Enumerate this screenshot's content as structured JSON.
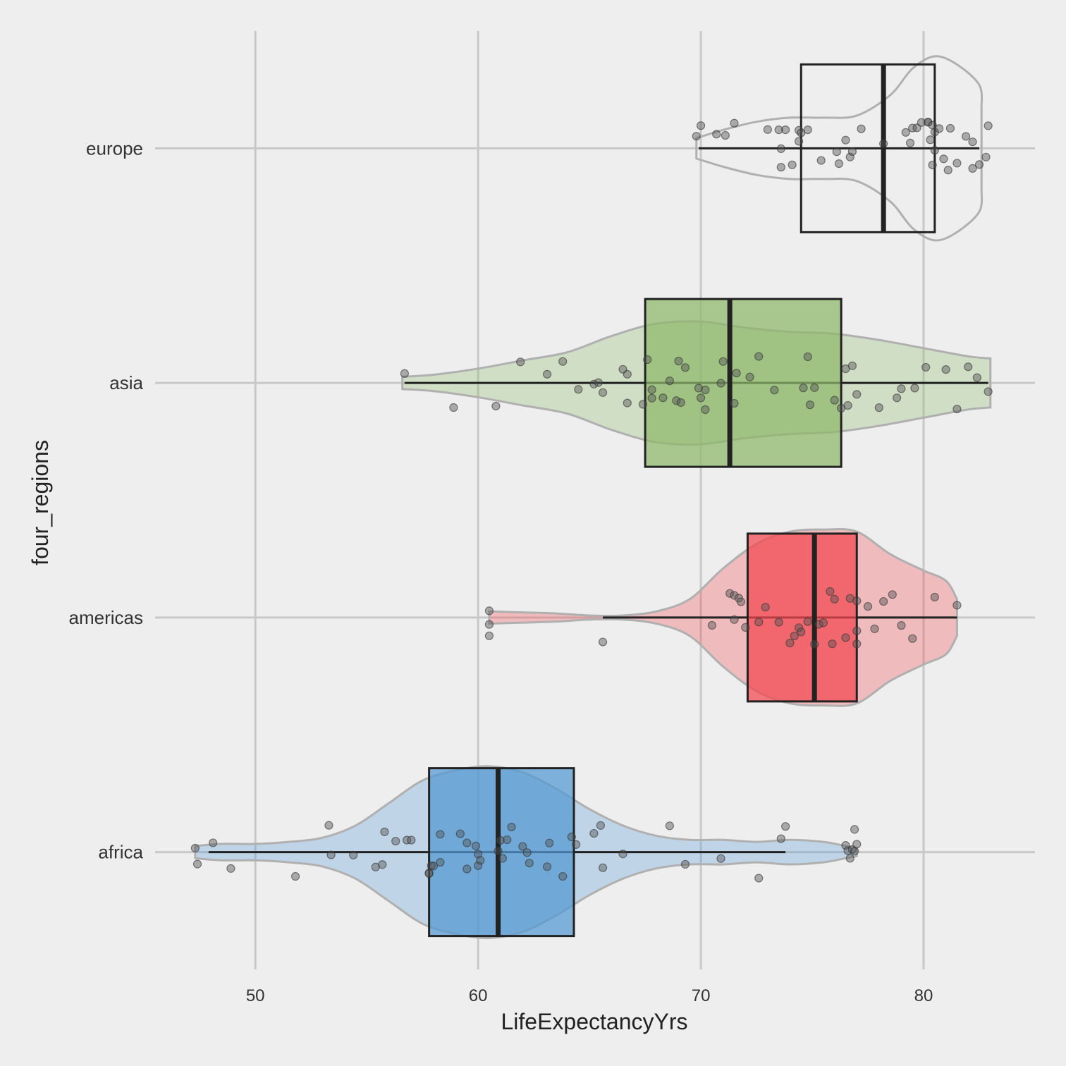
{
  "chart_data": {
    "type": "violin-box-jitter",
    "orientation": "horizontal",
    "xlabel": "LifeExpectancyYrs",
    "ylabel": "four_regions",
    "xlim": [
      45.5,
      85
    ],
    "x_ticks": [
      50,
      60,
      70,
      80
    ],
    "grid": true,
    "categories": [
      "europe",
      "asia",
      "americas",
      "africa"
    ],
    "series": [
      {
        "category": "europe",
        "color": "#ffffff",
        "box": {
          "min": 69.9,
          "q1": 74.5,
          "median": 78.2,
          "q3": 80.5,
          "max": 82.5
        },
        "violin": {
          "x": [
            69.8,
            71,
            72.5,
            74,
            75.5,
            77,
            78.5,
            79.5,
            80.5,
            81.5,
            82.5,
            82.6
          ],
          "half_width": [
            0.1,
            0.18,
            0.26,
            0.3,
            0.3,
            0.32,
            0.52,
            0.78,
            0.9,
            0.82,
            0.62,
            0.4
          ]
        },
        "points": [
          69.8,
          70,
          70.7,
          71.1,
          71.5,
          73,
          73.5,
          73.6,
          73.6,
          73.8,
          74.1,
          74.4,
          74.4,
          74.5,
          74.8,
          75.4,
          76.1,
          76.2,
          76.5,
          76.7,
          76.8,
          77.2,
          78.2,
          79.2,
          79.4,
          79.5,
          79.7,
          79.9,
          80.2,
          80.2,
          80.3,
          80.4,
          80.4,
          80.5,
          80.5,
          80.7,
          80.9,
          81.1,
          81.2,
          81.5,
          81.9,
          82.2,
          82.2,
          82.5,
          82.8,
          82.9
        ]
      },
      {
        "category": "asia",
        "color": "#8db86b",
        "box": {
          "min": 56.7,
          "q1": 67.5,
          "median": 71.3,
          "q3": 76.3,
          "max": 82.9
        },
        "violin": {
          "x": [
            56.6,
            58,
            60,
            62,
            64,
            66,
            68,
            70,
            72,
            74,
            76,
            78,
            80,
            82,
            83
          ],
          "half_width": [
            0.06,
            0.08,
            0.14,
            0.22,
            0.3,
            0.46,
            0.58,
            0.6,
            0.54,
            0.5,
            0.48,
            0.42,
            0.34,
            0.26,
            0.24
          ]
        },
        "points": [
          56.7,
          58.9,
          60.8,
          61.9,
          63.1,
          63.8,
          64.5,
          65.2,
          65.4,
          65.6,
          66.5,
          66.7,
          66.7,
          67.4,
          67.6,
          67.8,
          67.8,
          68.3,
          68.6,
          68.9,
          69,
          69.1,
          69.3,
          69.9,
          70,
          70.2,
          70.2,
          70.9,
          71,
          71.5,
          71.6,
          72.2,
          72.6,
          73.3,
          74.6,
          74.8,
          74.9,
          75.1,
          76,
          76.3,
          76.5,
          76.6,
          76.8,
          77,
          78.8,
          78,
          79,
          79.6,
          80.1,
          81,
          81.5,
          82,
          82.4,
          82.9
        ]
      },
      {
        "category": "americas",
        "color": "#f2474d",
        "box": {
          "min": 65.6,
          "q1": 72.1,
          "median": 75.1,
          "q3": 77,
          "max": 81.5
        },
        "violin": {
          "x": [
            60.5,
            62,
            63.5,
            65,
            66.5,
            68,
            69.5,
            71,
            72.5,
            74,
            75.5,
            77,
            78.5,
            80,
            81,
            81.5
          ],
          "half_width": [
            0.06,
            0.05,
            0.04,
            0.02,
            0.02,
            0.06,
            0.18,
            0.48,
            0.72,
            0.84,
            0.86,
            0.84,
            0.62,
            0.46,
            0.36,
            0.18
          ]
        },
        "points": [
          60.5,
          60.5,
          60.5,
          65.6,
          70.5,
          71.3,
          71.5,
          71.5,
          71.7,
          71.8,
          72,
          72.6,
          72.9,
          73.5,
          74,
          74.2,
          74.4,
          74.5,
          74.8,
          75.1,
          75.3,
          75.5,
          75.8,
          75.9,
          76,
          76.5,
          76.7,
          77,
          77,
          77,
          77.5,
          77.8,
          78.2,
          78.6,
          79,
          79.5,
          80.5,
          81.5
        ]
      },
      {
        "category": "africa",
        "color": "#5299d3",
        "box": {
          "min": 47.9,
          "q1": 57.8,
          "median": 60.9,
          "q3": 64.3,
          "max": 73.8
        },
        "violin": {
          "x": [
            47.3,
            48.5,
            50,
            51.5,
            53,
            54.5,
            56,
            57.5,
            59,
            60.5,
            62,
            63.5,
            65,
            66.5,
            68,
            69.5,
            71,
            72.5,
            74,
            75.5,
            76.5,
            77
          ],
          "half_width": [
            0.06,
            0.08,
            0.08,
            0.1,
            0.14,
            0.26,
            0.48,
            0.7,
            0.8,
            0.84,
            0.78,
            0.62,
            0.42,
            0.26,
            0.16,
            0.12,
            0.12,
            0.1,
            0.12,
            0.1,
            0.06,
            0.04
          ]
        },
        "points": [
          47.3,
          47.4,
          48.1,
          48.9,
          51.8,
          53.3,
          53.4,
          54.4,
          55.4,
          55.7,
          55.8,
          56.3,
          56.8,
          57,
          57.8,
          57.8,
          57.9,
          58,
          58.3,
          58.3,
          59.2,
          59.5,
          59.5,
          59.9,
          60,
          60,
          60.1,
          60.9,
          61,
          61.1,
          61.3,
          61.5,
          62,
          62.2,
          62.3,
          63.1,
          63.2,
          63.8,
          64.2,
          64.4,
          65.2,
          65.5,
          65.6,
          66.5,
          68.6,
          69.3,
          70.9,
          72.6,
          73.6,
          73.8,
          76.5,
          76.6,
          76.7,
          76.8,
          76.9,
          76.9,
          77
        ]
      }
    ]
  }
}
